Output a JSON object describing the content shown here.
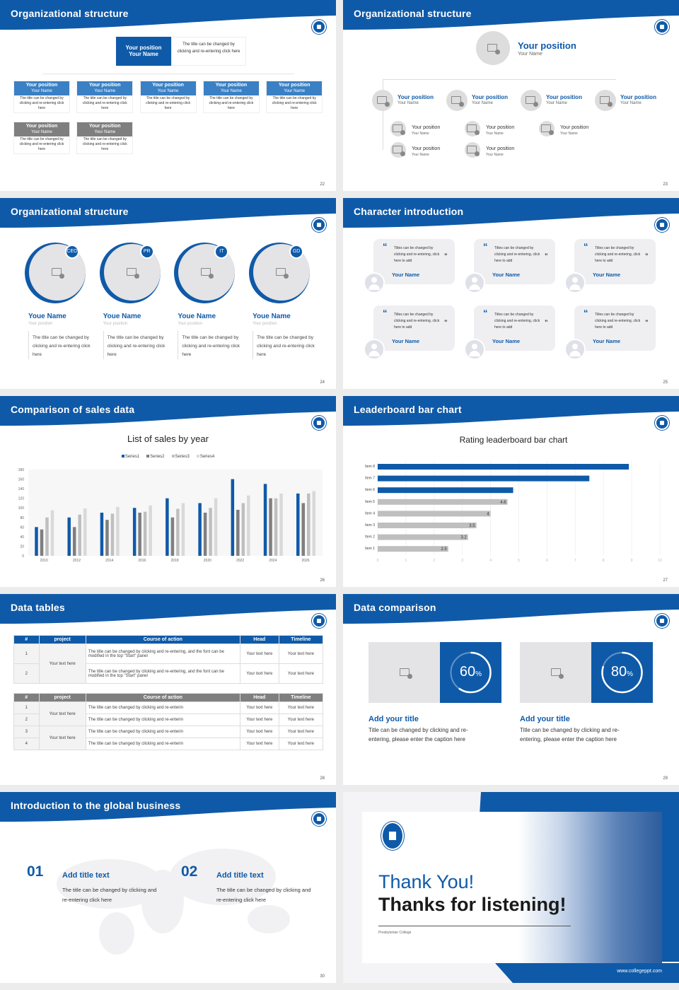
{
  "colors": {
    "brand": "#0f5aa8",
    "light_blue": "#3a80c4",
    "gray": "#7f7f7f",
    "light_gray": "#bfbfbf",
    "lighter_gray": "#d9d9d9"
  },
  "slides": [
    {
      "title": "Organizational structure",
      "page": "22",
      "top": {
        "position": "Your position",
        "name": "Your Name",
        "desc": "The title can be changed by clicking and re-entering click here"
      },
      "row_blue": [
        {
          "position": "Your position",
          "name": "Your Name",
          "desc": "The title can be changed by clicking and re-entering click here"
        },
        {
          "position": "Your position",
          "name": "Your Name",
          "desc": "The title can be changed by clicking and re-entering click here"
        },
        {
          "position": "Your position",
          "name": "Your Name",
          "desc": "The title can be changed by clicking and re-entering click here"
        },
        {
          "position": "Your position",
          "name": "Your Name",
          "desc": "The title can be changed by clicking and re-entering click here"
        },
        {
          "position": "Your position",
          "name": "Your Name",
          "desc": "The title can be changed by clicking and re-entering click here"
        }
      ],
      "row_gray": [
        {
          "position": "Your position",
          "name": "Your Name",
          "desc": "The title can be changed by clicking and re-entering click here"
        },
        {
          "position": "Your position",
          "name": "Your Name",
          "desc": "The title can be changed by clicking and re-entering click here"
        }
      ]
    },
    {
      "title": "Organizational structure",
      "page": "23",
      "top": {
        "position": "Your position",
        "name": "Your Name"
      },
      "level2": [
        {
          "position": "Your position",
          "name": "Your Name"
        },
        {
          "position": "Your position",
          "name": "Your Name"
        },
        {
          "position": "Your position",
          "name": "Your Name"
        },
        {
          "position": "Your position",
          "name": "Your Name"
        }
      ],
      "level3": [
        {
          "position": "Your position",
          "name": "Your Name"
        },
        {
          "position": "Your position",
          "name": "Your Name"
        },
        {
          "position": "Your position",
          "name": "Your Name"
        },
        {
          "position": "Your position",
          "name": "Your Name"
        },
        {
          "position": "Your position",
          "name": "Your Name"
        }
      ]
    },
    {
      "title": "Organizational structure",
      "page": "24",
      "members": [
        {
          "badge": "CEO",
          "name": "Youe Name",
          "position": "Your position",
          "desc": "The title can be changed by clicking and re-entering click here"
        },
        {
          "badge": "PR",
          "name": "Youe Name",
          "position": "Your position",
          "desc": "The title can be changed by clicking and re-entering click here"
        },
        {
          "badge": "IT",
          "name": "Youe Name",
          "position": "Your position",
          "desc": "The title can be changed by clicking and re-entering click here"
        },
        {
          "badge": "GD",
          "name": "Youe Name",
          "position": "Your position",
          "desc": "The title can be changed by clicking and re-entering click here"
        }
      ]
    },
    {
      "title": "Character introduction",
      "page": "25",
      "cards": [
        {
          "quote": "Titles can be changed by clicking and re-entering, click here to add",
          "name": "Your Name"
        },
        {
          "quote": "Titles can be changed by clicking and re-entering, click here to add",
          "name": "Your Name"
        },
        {
          "quote": "Titles can be changed by clicking and re-entering, click here to add",
          "name": "Your Name"
        },
        {
          "quote": "Titles can be changed by clicking and re-entering, click here to add",
          "name": "Your Name"
        },
        {
          "quote": "Titles can be changed by clicking and re-entering, click here to add",
          "name": "Your Name"
        },
        {
          "quote": "Titles can be changed by clicking and re-entering, click here to add",
          "name": "Your Name"
        }
      ]
    },
    {
      "title": "Comparison of sales data",
      "page": "26"
    },
    {
      "title": "Leaderboard bar chart",
      "page": "27"
    },
    {
      "title": "Data tables",
      "page": "28",
      "table1": {
        "headers": [
          "#",
          "project",
          "Course of action",
          "Head",
          "Timeline"
        ],
        "project": "Your text here",
        "rows": [
          [
            "1",
            "The title can be changed by clicking and re-entering, and the font can be modified in the top \"Start\" panel",
            "Your text here",
            "Your text here"
          ],
          [
            "2",
            "The title can be changed by clicking and re-entering, and the font can be modified in the top \"Start\" panel",
            "Your text here",
            "Your text here"
          ]
        ]
      },
      "table2": {
        "headers": [
          "#",
          "project",
          "Course of action",
          "Head",
          "Timeline"
        ],
        "projects": [
          "Your text here",
          "Your text here"
        ],
        "rows": [
          [
            "1",
            "The title can be changed by clicking and re-enterin",
            "Your text here",
            "Your text here"
          ],
          [
            "2",
            "The title can be changed by clicking and re-enterin",
            "Your text here",
            "Your text here"
          ],
          [
            "3",
            "The title can be changed by clicking and re-enterin",
            "Your text here",
            "Your text here"
          ],
          [
            "4",
            "The title can be changed by clicking and re-enterin",
            "Your text here",
            "Your text here"
          ]
        ]
      }
    },
    {
      "title": "Data comparison",
      "page": "29",
      "items": [
        {
          "percent": 60,
          "title": "Add your title",
          "desc": "Title can be changed by clicking and re-entering, please enter the caption here"
        },
        {
          "percent": 80,
          "title": "Add your title",
          "desc": "Title can be changed by clicking and re-entering, please enter the caption here"
        }
      ]
    },
    {
      "title": "Introduction to the global business",
      "page": "30",
      "items": [
        {
          "num": "01",
          "title": "Add title text",
          "desc": "The title can be changed by clicking and re-entering click here"
        },
        {
          "num": "02",
          "title": "Add title text",
          "desc": "The title can be changed by clicking and re-entering click here"
        }
      ]
    },
    {
      "thanks": "Thank You!",
      "listening": "Thanks for listening!",
      "college": "Presbyterian College",
      "url": "www.collegeppt.com"
    }
  ],
  "chart_data": [
    {
      "type": "bar",
      "title": "List of sales by year",
      "categories": [
        "2010",
        "2012",
        "2014",
        "2016",
        "2018",
        "2020",
        "2022",
        "2024",
        "2026"
      ],
      "series": [
        {
          "name": "Series1",
          "values": [
            60,
            80,
            90,
            100,
            120,
            110,
            160,
            150,
            130
          ]
        },
        {
          "name": "Series2",
          "values": [
            55,
            60,
            75,
            90,
            80,
            90,
            96,
            120,
            110
          ]
        },
        {
          "name": "Series3",
          "values": [
            80,
            86,
            88,
            92,
            98,
            100,
            110,
            120,
            130
          ]
        },
        {
          "name": "Series4",
          "values": [
            95,
            99,
            102,
            105,
            110,
            120,
            126,
            130,
            135
          ]
        }
      ],
      "ylim": [
        0,
        180
      ],
      "yticks": [
        0,
        20,
        40,
        60,
        80,
        100,
        120,
        140,
        160,
        180
      ],
      "legend": "top",
      "grid": false
    },
    {
      "type": "bar",
      "orientation": "horizontal",
      "title": "Rating leaderboard bar chart",
      "categories": [
        "Item 8",
        "Item 7",
        "Item 6",
        "Item 5",
        "Item 4",
        "Item 3",
        "Item 2",
        "Item 1"
      ],
      "values": [
        8.9,
        7.5,
        4.8,
        4.6,
        4,
        3.5,
        3.2,
        2.5
      ],
      "labels": [
        "",
        "",
        "",
        "4.6",
        "4",
        "3.5",
        "3.2",
        "2.5"
      ],
      "highlight_top": 3,
      "xlim": [
        0,
        10
      ],
      "xticks": [
        0,
        1,
        2,
        3,
        4,
        5,
        6,
        7,
        8,
        9,
        10
      ],
      "grid": true
    }
  ]
}
